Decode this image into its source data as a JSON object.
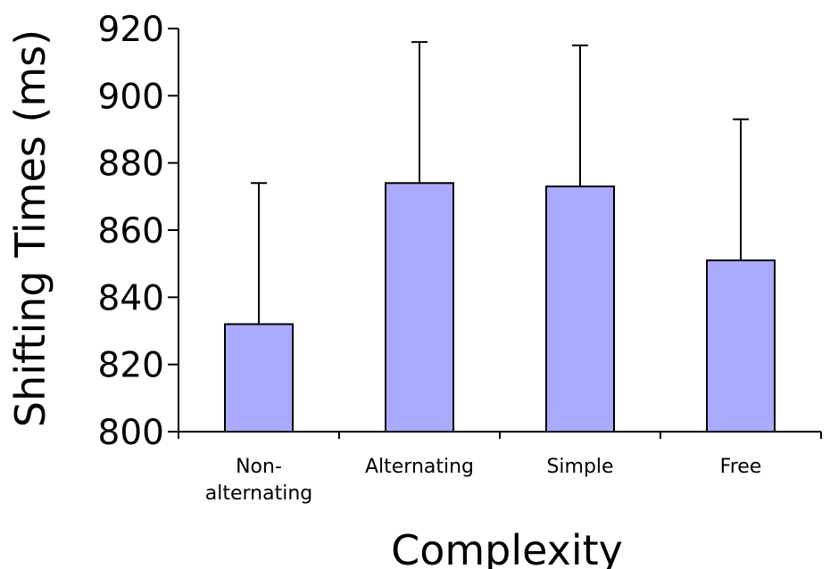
{
  "chart_data": {
    "type": "bar",
    "categories": [
      [
        "Non-",
        "alternating"
      ],
      [
        "Alternating"
      ],
      [
        "Simple"
      ],
      [
        "Free"
      ]
    ],
    "values": [
      832,
      874,
      873,
      851
    ],
    "error_upper": [
      874,
      916,
      915,
      893
    ],
    "xlabel": "Complexity",
    "ylabel": "Shifting Times (ms)",
    "ylim": [
      800,
      920
    ],
    "yticks": [
      "800",
      "820",
      "840",
      "860",
      "880",
      "900",
      "920"
    ],
    "bar_color": "#aaaaff",
    "grid": false,
    "legend": "none"
  }
}
